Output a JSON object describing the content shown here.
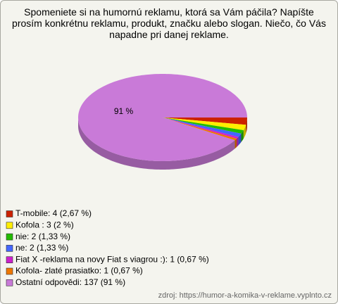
{
  "chart_data": {
    "type": "pie",
    "title": "Spomeniete si na humornú reklamu, ktorá sa Vám páčila? Napíšte prosím konkrétnu reklamu, produkt, značku alebo slogan. Niečo, čo Vás napadne pri danej reklame.",
    "categories": [
      "T-mobile: 4 (2,67 %)",
      "Kofola : 3 (2 %)",
      "nie: 2 (1,33 %)",
      "ne: 2 (1,33 %)",
      "Fiat X -reklama na novy Fiat s viagrou :): 1 (0,67 %)",
      "Kofola- zlaté prasiatko: 1 (0,67 %)",
      "Ostatní odpovědi: 137 (91 %)"
    ],
    "values": [
      2.67,
      2,
      1.33,
      1.33,
      0.67,
      0.67,
      91
    ],
    "value_labels": [
      null,
      null,
      null,
      null,
      null,
      null,
      "91 %"
    ],
    "colors": [
      "#cc2200",
      "#ffee00",
      "#22bb00",
      "#4466ff",
      "#cc22cc",
      "#ee7700",
      "#c97ad8"
    ],
    "legend": "bottom-left",
    "source": "zdroj: https://humor-a-komika-v-reklame.vyplnto.cz"
  }
}
